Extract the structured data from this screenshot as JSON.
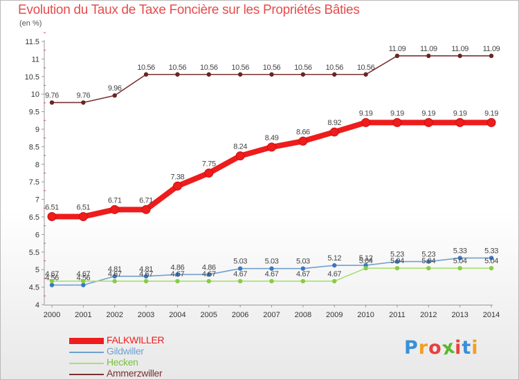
{
  "header": {
    "title": "Evolution du Taux de Taxe Foncière sur les Propriétés Bâties",
    "unit": "(en %)"
  },
  "logo": {
    "letters": [
      "P",
      "r",
      "o",
      "x",
      "i",
      "t",
      "i"
    ],
    "colors": [
      "#3a8fd8",
      "#f0a020",
      "#e84040",
      "#58b830",
      "#e84040",
      "#3a8fd8",
      "#f0a020"
    ]
  },
  "chart_data": {
    "type": "line",
    "x": [
      "2000",
      "2001",
      "2002",
      "2003",
      "2004",
      "2005",
      "2006",
      "2007",
      "2008",
      "2009",
      "2010",
      "2011",
      "2012",
      "2013",
      "2014"
    ],
    "ylim": [
      4,
      11.5
    ],
    "yticks": [
      "4",
      "4.5",
      "5",
      "5.5",
      "6",
      "6.5",
      "7",
      "7.5",
      "8",
      "8.5",
      "9",
      "9.5",
      "10",
      "10.5",
      "11",
      "11.5"
    ],
    "grid": false,
    "legend": "bottom-left",
    "series": [
      {
        "name": "Ammerzwiller",
        "color": "#7a3030",
        "marker": "#6a2424",
        "values": [
          9.76,
          9.76,
          9.96,
          10.56,
          10.56,
          10.56,
          10.56,
          10.56,
          10.56,
          10.56,
          10.56,
          11.09,
          11.09,
          11.09,
          11.09
        ],
        "labels": [
          "9.76",
          "9.76",
          "9.96",
          "10.56",
          "10.56",
          "10.56",
          "10.56",
          "10.56",
          "10.56",
          "10.56",
          "10.56",
          "11.09",
          "11.09",
          "11.09",
          "11.09"
        ]
      },
      {
        "name": "FALKWILLER",
        "color": "#ee1c1c",
        "marker": "#ee1c1c",
        "values": [
          6.51,
          6.51,
          6.71,
          6.71,
          7.38,
          7.75,
          8.24,
          8.49,
          8.66,
          8.92,
          9.19,
          9.19,
          9.19,
          9.19,
          9.19
        ],
        "labels": [
          "6.51",
          "6.51",
          "6.71",
          "6.71",
          "7.38",
          "7.75",
          "8.24",
          "8.49",
          "8.66",
          "8.92",
          "9.19",
          "9.19",
          "9.19",
          "9.19",
          "9.19"
        ]
      },
      {
        "name": "Gildwiller",
        "color": "#6fa0d0",
        "marker": "#3a78c0",
        "values": [
          4.56,
          4.56,
          4.81,
          4.81,
          4.86,
          4.86,
          5.03,
          5.03,
          5.03,
          5.12,
          5.12,
          5.23,
          5.23,
          5.33,
          5.33
        ],
        "labels": [
          "4.56",
          "4.56",
          "4.81",
          "4.81",
          "4.86",
          "4.86",
          "5.03",
          "5.03",
          "5.03",
          "5.12",
          "5.12",
          "5.23",
          "5.23",
          "5.33",
          "5.33"
        ]
      },
      {
        "name": "Hecken",
        "color": "#a8e070",
        "marker": "#88cc44",
        "values": [
          4.67,
          4.67,
          4.67,
          4.67,
          4.67,
          4.67,
          4.67,
          4.67,
          4.67,
          4.67,
          5.04,
          5.04,
          5.04,
          5.04,
          5.04
        ],
        "labels": [
          "4.67",
          "4.67",
          "4.67",
          "4.67",
          "4.67",
          "4.67",
          "4.67",
          "4.67",
          "4.67",
          "4.67",
          "5.04",
          "5.04",
          "5.04",
          "5.04",
          "5.04"
        ]
      }
    ],
    "legend_entries": [
      {
        "name": "FALKWILLER",
        "color": "#ee1c1c"
      },
      {
        "name": "Gildwiller",
        "color": "#6fa0d0"
      },
      {
        "name": "Hecken",
        "color": "#a8e070"
      },
      {
        "name": "Ammerzwiller",
        "color": "#7a3030"
      }
    ]
  }
}
